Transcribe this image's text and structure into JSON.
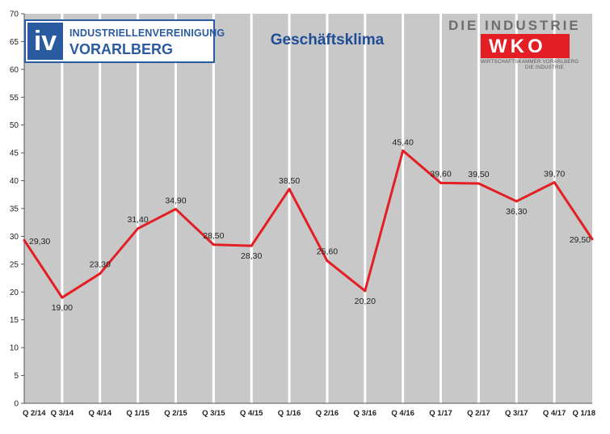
{
  "logos": {
    "iv_mark": "iv",
    "iv_line1": "INDUSTRIELLENVEREINIGUNG",
    "iv_line2": "VORARLBERG",
    "wko_heading": "DIE INDUSTRIE",
    "wko_mark": "WKO",
    "wko_sub1": "WIRTSCHAFTSKAMMER VORARLBERG",
    "wko_sub2": "DIE INDUSTRIE"
  },
  "colors": {
    "plot_background": "#c8c8c8",
    "gridline": "#ffffff",
    "line": "#e31e24",
    "title": "#1f4e96",
    "brand_blue": "#2a5aa0",
    "wko_red": "#e31e24"
  },
  "chart_data": {
    "type": "line",
    "title": "Geschäftsklima",
    "xlabel": "",
    "ylabel": "",
    "ylim": [
      0,
      70
    ],
    "yticks": [
      0,
      5,
      10,
      15,
      20,
      25,
      30,
      35,
      40,
      45,
      50,
      55,
      60,
      65,
      70
    ],
    "grid": "vertical",
    "legend": "none",
    "categories": [
      "Q 2/14",
      "Q 3/14",
      "Q 4/14",
      "Q 1/15",
      "Q 2/15",
      "Q 3/15",
      "Q 4/15",
      "Q 1/16",
      "Q 2/16",
      "Q 3/16",
      "Q 4/16",
      "Q 1/17",
      "Q 2/17",
      "Q 3/17",
      "Q 4/17",
      "Q 1/18"
    ],
    "values": [
      29.3,
      19.0,
      23.3,
      31.4,
      34.9,
      28.5,
      28.3,
      38.5,
      25.6,
      20.2,
      45.4,
      39.6,
      39.5,
      36.3,
      39.7,
      29.5
    ],
    "labels": [
      "29,30",
      "19,00",
      "23,30",
      "31,40",
      "34,90",
      "28,50",
      "28,30",
      "38,50",
      "25,60",
      "20,20",
      "45,40",
      "39,60",
      "39,50",
      "36,30",
      "39,70",
      "29,50"
    ]
  }
}
